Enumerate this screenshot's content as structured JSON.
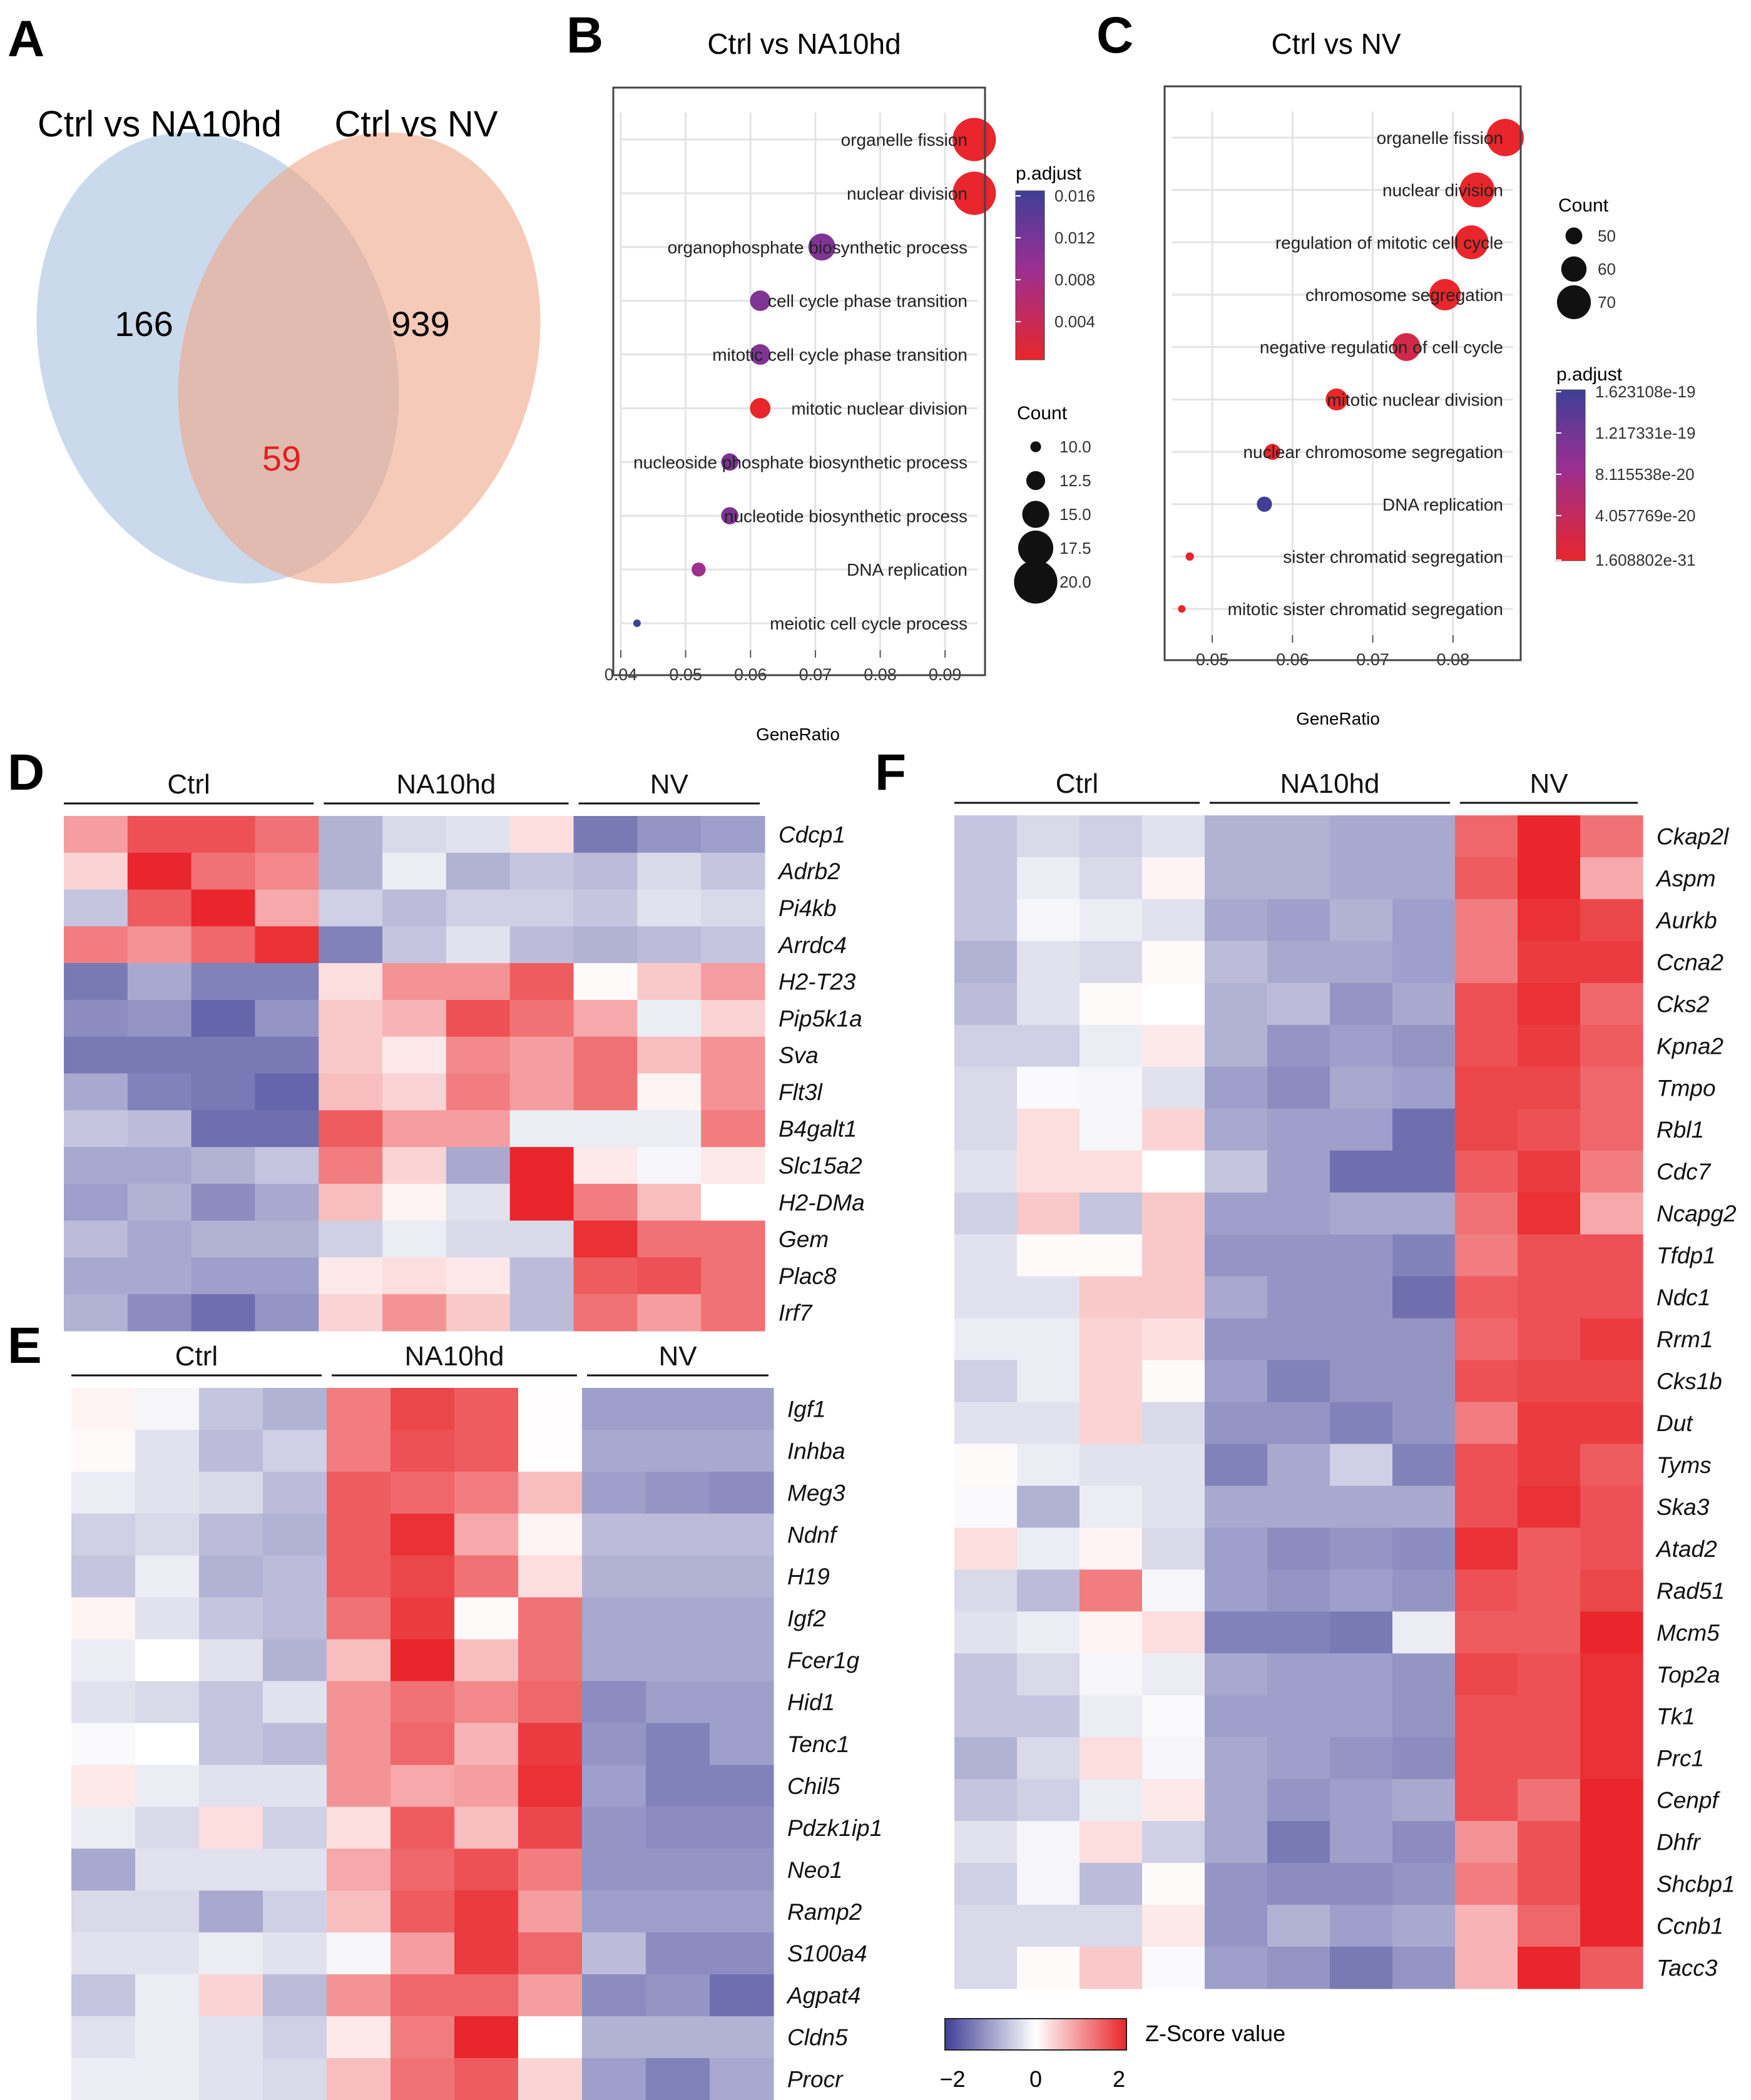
{
  "panel_letters": [
    "A",
    "B",
    "C",
    "D",
    "E",
    "F"
  ],
  "chart_data": [
    {
      "panel": "A",
      "type": "venn",
      "sets": [
        {
          "name": "Ctrl vs NA10hd",
          "only": 166,
          "color": "#b8cde6"
        },
        {
          "name": "Ctrl vs NV",
          "only": 939,
          "color": "#f0a688"
        }
      ],
      "intersection": 59,
      "intersection_color": "#e02020"
    },
    {
      "panel": "B",
      "type": "scatter",
      "title": "Ctrl vs NA10hd",
      "xlabel": "GeneRatio",
      "xlim": [
        0.04,
        0.095
      ],
      "xticks": [
        0.04,
        0.05,
        0.06,
        0.07,
        0.08,
        0.09
      ],
      "xtick_labels": [
        "0.04",
        "0.05",
        "0.06",
        "0.07",
        "0.08",
        "0.09"
      ],
      "terms": [
        {
          "term": "organelle fission",
          "ratio": 0.0945,
          "count": 20,
          "padj": 0.001
        },
        {
          "term": "nuclear division",
          "ratio": 0.0945,
          "count": 20,
          "padj": 0.001
        },
        {
          "term": "organophosphate biosynthetic process",
          "ratio": 0.071,
          "count": 15,
          "padj": 0.0115
        },
        {
          "term": "cell cycle phase transition",
          "ratio": 0.0615,
          "count": 13,
          "padj": 0.0115
        },
        {
          "term": "mitotic cell cycle phase transition",
          "ratio": 0.0615,
          "count": 13,
          "padj": 0.0115
        },
        {
          "term": "mitotic nuclear division",
          "ratio": 0.0615,
          "count": 13,
          "padj": 0.001
        },
        {
          "term": "nucleoside phosphate biosynthetic process",
          "ratio": 0.0568,
          "count": 12,
          "padj": 0.0118
        },
        {
          "term": "nucleotide biosynthetic process",
          "ratio": 0.0568,
          "count": 12,
          "padj": 0.0118
        },
        {
          "term": "DNA replication",
          "ratio": 0.052,
          "count": 11,
          "padj": 0.009
        },
        {
          "term": "meiotic cell cycle process",
          "ratio": 0.0425,
          "count": 9,
          "padj": 0.0165
        }
      ],
      "color_legend": {
        "title": "p.adjust",
        "ticks": [
          "0.016",
          "0.012",
          "0.008",
          "0.004"
        ],
        "min": 0.001,
        "max": 0.0165
      },
      "size_legend": {
        "title": "Count",
        "values": [
          10,
          12.5,
          15,
          17.5,
          20
        ],
        "labels": [
          "10.0",
          "12.5",
          "15.0",
          "17.5",
          "20.0"
        ]
      }
    },
    {
      "panel": "C",
      "type": "scatter",
      "title": "Ctrl vs NV",
      "xlabel": "GeneRatio",
      "xlim": [
        0.045,
        0.0875
      ],
      "xticks": [
        0.05,
        0.06,
        0.07,
        0.08
      ],
      "xtick_labels": [
        "0.05",
        "0.06",
        "0.07",
        "0.08"
      ],
      "terms": [
        {
          "term": "organelle fission",
          "ratio": 0.0865,
          "count": 74,
          "padj": 1.6e-31
        },
        {
          "term": "nuclear division",
          "ratio": 0.083,
          "count": 71,
          "padj": 1e-30
        },
        {
          "term": "regulation of mitotic cell cycle",
          "ratio": 0.0823,
          "count": 70,
          "padj": 1e-25
        },
        {
          "term": "chromosome segregation",
          "ratio": 0.079,
          "count": 67,
          "padj": 1e-24
        },
        {
          "term": "negative regulation of cell cycle",
          "ratio": 0.0742,
          "count": 63,
          "padj": 2.5e-20
        },
        {
          "term": "mitotic nuclear division",
          "ratio": 0.0655,
          "count": 56,
          "padj": 1e-23
        },
        {
          "term": "nuclear chromosome segregation",
          "ratio": 0.0575,
          "count": 49,
          "padj": 1e-22
        },
        {
          "term": "DNA replication",
          "ratio": 0.0565,
          "count": 48,
          "padj": 1.6e-19
        },
        {
          "term": "sister chromatid segregation",
          "ratio": 0.0472,
          "count": 40,
          "padj": 1e-22
        },
        {
          "term": "mitotic sister chromatid segregation",
          "ratio": 0.0462,
          "count": 39,
          "padj": 1e-22
        }
      ],
      "color_legend": {
        "title": "p.adjust",
        "ticks": [
          "1.623108e-19",
          "1.217331e-19",
          "8.115538e-20",
          "4.057769e-20",
          "1.608802e-31"
        ],
        "min": 1.608802e-31,
        "max": 1.623108e-19
      },
      "size_legend": {
        "title": "Count",
        "values": [
          50,
          60,
          70
        ],
        "labels": [
          "50",
          "60",
          "70"
        ]
      }
    },
    {
      "panel": "D",
      "type": "heatmap",
      "groups": [
        {
          "name": "Ctrl",
          "n": 4
        },
        {
          "name": "NA10hd",
          "n": 4
        },
        {
          "name": "NV",
          "n": 3
        }
      ],
      "genes": [
        "Cdcp1",
        "Adrb2",
        "Pi4kb",
        "Arrdc4",
        "H2-T23",
        "Pip5k1a",
        "Sva",
        "Flt3l",
        "B4galt1",
        "Slc15a2",
        "H2-DMa",
        "Gem",
        "Plac8",
        "Irf7"
      ],
      "values": [
        [
          0.9,
          1.6,
          1.6,
          1.3,
          -0.8,
          -0.4,
          -0.3,
          0.3,
          -1.4,
          -1.1,
          -1.0
        ],
        [
          0.4,
          2.0,
          1.3,
          1.1,
          -0.8,
          -0.2,
          -0.8,
          -0.6,
          -0.7,
          -0.4,
          -0.6
        ],
        [
          -0.6,
          1.5,
          2.0,
          0.8,
          -0.5,
          -0.7,
          -0.5,
          -0.5,
          -0.6,
          -0.3,
          -0.4
        ],
        [
          1.2,
          1.0,
          1.4,
          1.9,
          -1.3,
          -0.6,
          -0.3,
          -0.7,
          -0.8,
          -0.7,
          -0.6
        ],
        [
          -1.4,
          -0.9,
          -1.3,
          -1.3,
          0.3,
          1.0,
          1.0,
          1.5,
          0.05,
          0.5,
          0.9
        ],
        [
          -1.2,
          -1.1,
          -1.6,
          -1.1,
          0.5,
          0.7,
          1.6,
          1.3,
          0.8,
          -0.2,
          0.4
        ],
        [
          -1.4,
          -1.4,
          -1.4,
          -1.4,
          0.5,
          0.2,
          1.1,
          0.9,
          1.3,
          0.6,
          1.0
        ],
        [
          -0.9,
          -1.3,
          -1.4,
          -1.6,
          0.6,
          0.4,
          1.2,
          0.9,
          1.3,
          0.1,
          1.0
        ],
        [
          -0.6,
          -0.7,
          -1.5,
          -1.5,
          1.5,
          0.9,
          0.9,
          -0.2,
          -0.2,
          -0.2,
          1.2
        ],
        [
          -0.9,
          -0.9,
          -0.8,
          -0.6,
          1.2,
          0.4,
          -0.9,
          2.3,
          0.2,
          -0.1,
          0.2
        ],
        [
          -1.0,
          -0.8,
          -1.2,
          -0.9,
          0.6,
          0.1,
          -0.3,
          2.0,
          1.2,
          0.6,
          0.0
        ],
        [
          -0.7,
          -0.9,
          -0.8,
          -0.8,
          -0.5,
          -0.2,
          -0.4,
          -0.4,
          1.9,
          1.3,
          1.3
        ],
        [
          -0.9,
          -0.9,
          -1.0,
          -1.0,
          0.2,
          0.3,
          0.2,
          -0.7,
          1.5,
          1.6,
          1.3
        ],
        [
          -0.8,
          -1.2,
          -1.5,
          -1.1,
          0.4,
          1.0,
          0.5,
          -0.7,
          1.3,
          0.9,
          1.3
        ]
      ]
    },
    {
      "panel": "E",
      "type": "heatmap",
      "groups": [
        {
          "name": "Ctrl",
          "n": 4
        },
        {
          "name": "NA10hd",
          "n": 4
        },
        {
          "name": "NV",
          "n": 3
        }
      ],
      "genes": [
        "Igf1",
        "Inhba",
        "Meg3",
        "Ndnf",
        "H19",
        "Igf2",
        "Fcer1g",
        "Hid1",
        "Tenc1",
        "Chil5",
        "Pdzk1ip1",
        "Neo1",
        "Ramp2",
        "S100a4",
        "Agpat4",
        "Cldn5",
        "Procr"
      ],
      "values": [
        [
          0.1,
          -0.1,
          -0.6,
          -0.8,
          1.2,
          1.7,
          1.5,
          0.02,
          -1.0,
          -1.0,
          -1.0
        ],
        [
          0.05,
          -0.3,
          -0.7,
          -0.5,
          1.2,
          1.6,
          1.5,
          0.02,
          -0.9,
          -0.9,
          -0.9
        ],
        [
          -0.2,
          -0.3,
          -0.4,
          -0.7,
          1.5,
          1.4,
          1.2,
          0.6,
          -1.0,
          -1.1,
          -1.2
        ],
        [
          -0.5,
          -0.4,
          -0.7,
          -0.8,
          1.5,
          1.9,
          0.8,
          0.1,
          -0.7,
          -0.7,
          -0.7
        ],
        [
          -0.6,
          -0.2,
          -0.8,
          -0.7,
          1.5,
          1.7,
          1.3,
          0.3,
          -0.8,
          -0.8,
          -0.8
        ],
        [
          0.1,
          -0.3,
          -0.6,
          -0.7,
          1.3,
          1.8,
          0.05,
          1.3,
          -0.9,
          -0.9,
          -0.9
        ],
        [
          -0.2,
          0.0,
          -0.3,
          -0.8,
          0.6,
          2.0,
          0.6,
          1.3,
          -0.9,
          -0.9,
          -0.9
        ],
        [
          -0.3,
          -0.4,
          -0.6,
          -0.3,
          1.0,
          1.3,
          1.1,
          1.4,
          -1.2,
          -1.0,
          -1.0
        ],
        [
          -0.05,
          0.0,
          -0.6,
          -0.7,
          1.0,
          1.4,
          0.7,
          1.8,
          -1.1,
          -1.3,
          -1.0
        ],
        [
          0.2,
          -0.2,
          -0.3,
          -0.3,
          1.0,
          0.8,
          0.9,
          1.9,
          -1.0,
          -1.3,
          -1.3
        ],
        [
          -0.2,
          -0.4,
          0.3,
          -0.5,
          0.3,
          1.5,
          0.6,
          1.7,
          -1.1,
          -1.2,
          -1.2
        ],
        [
          -0.9,
          -0.3,
          -0.3,
          -0.3,
          0.8,
          1.4,
          1.6,
          1.2,
          -1.1,
          -1.1,
          -1.1
        ],
        [
          -0.4,
          -0.4,
          -0.9,
          -0.5,
          0.6,
          1.5,
          1.8,
          0.9,
          -1.0,
          -1.0,
          -1.0
        ],
        [
          -0.3,
          -0.3,
          -0.2,
          -0.3,
          -0.1,
          0.9,
          1.8,
          1.4,
          -0.7,
          -1.2,
          -1.2
        ],
        [
          -0.6,
          -0.2,
          0.4,
          -0.7,
          1.0,
          1.4,
          1.4,
          0.9,
          -1.2,
          -1.1,
          -1.5
        ],
        [
          -0.3,
          -0.2,
          -0.3,
          -0.5,
          0.2,
          1.2,
          2.1,
          0.0,
          -0.8,
          -0.8,
          -0.8
        ],
        [
          -0.2,
          -0.2,
          -0.3,
          -0.4,
          0.6,
          1.3,
          1.5,
          0.4,
          -1.0,
          -1.3,
          -0.9
        ]
      ]
    },
    {
      "panel": "F",
      "type": "heatmap",
      "groups": [
        {
          "name": "Ctrl",
          "n": 4
        },
        {
          "name": "NA10hd",
          "n": 4
        },
        {
          "name": "NV",
          "n": 3
        }
      ],
      "genes": [
        "Ckap2l",
        "Aspm",
        "Aurkb",
        "Ccna2",
        "Cks2",
        "Kpna2",
        "Tmpo",
        "Rbl1",
        "Cdc7",
        "Ncapg2",
        "Tfdp1",
        "Ndc1",
        "Rrm1",
        "Cks1b",
        "Dut",
        "Tyms",
        "Ska3",
        "Atad2",
        "Rad51",
        "Mcm5",
        "Top2a",
        "Tk1",
        "Prc1",
        "Cenpf",
        "Dhfr",
        "Shcbp1",
        "Ccnb1",
        "Tacc3"
      ],
      "values": [
        [
          -0.6,
          -0.4,
          -0.5,
          -0.3,
          -0.8,
          -0.8,
          -0.9,
          -0.9,
          1.4,
          2.0,
          1.3
        ],
        [
          -0.6,
          -0.2,
          -0.4,
          0.1,
          -0.8,
          -0.8,
          -0.9,
          -0.9,
          1.5,
          2.0,
          0.8
        ],
        [
          -0.6,
          -0.1,
          -0.2,
          -0.3,
          -0.9,
          -1.0,
          -0.8,
          -1.0,
          1.2,
          1.9,
          1.7
        ],
        [
          -0.8,
          -0.3,
          -0.4,
          0.05,
          -0.7,
          -0.9,
          -0.9,
          -1.0,
          1.2,
          1.8,
          1.8
        ],
        [
          -0.7,
          -0.3,
          0.05,
          0.0,
          -0.8,
          -0.7,
          -1.1,
          -0.9,
          1.6,
          1.9,
          1.4
        ],
        [
          -0.5,
          -0.5,
          -0.2,
          0.2,
          -0.8,
          -1.1,
          -1.0,
          -1.1,
          1.6,
          1.8,
          1.5
        ],
        [
          -0.4,
          -0.05,
          -0.1,
          -0.3,
          -1.0,
          -1.2,
          -0.9,
          -1.0,
          1.7,
          1.7,
          1.4
        ],
        [
          -0.4,
          0.3,
          -0.1,
          0.4,
          -0.9,
          -1.0,
          -1.0,
          -1.5,
          1.7,
          1.6,
          1.4
        ],
        [
          -0.3,
          0.3,
          0.3,
          0.0,
          -0.6,
          -1.0,
          -1.5,
          -1.5,
          1.5,
          1.8,
          1.2
        ],
        [
          -0.5,
          0.5,
          -0.6,
          0.5,
          -1.0,
          -1.0,
          -0.9,
          -0.9,
          1.3,
          1.9,
          0.8
        ],
        [
          -0.3,
          0.05,
          0.05,
          0.5,
          -1.1,
          -1.1,
          -1.1,
          -1.3,
          1.2,
          1.6,
          1.6
        ],
        [
          -0.3,
          -0.3,
          0.5,
          0.5,
          -0.9,
          -1.1,
          -1.1,
          -1.5,
          1.5,
          1.6,
          1.6
        ],
        [
          -0.2,
          -0.2,
          0.4,
          0.3,
          -1.1,
          -1.1,
          -1.1,
          -1.1,
          1.4,
          1.6,
          1.8
        ],
        [
          -0.5,
          -0.2,
          0.4,
          0.05,
          -1.0,
          -1.3,
          -1.1,
          -1.1,
          1.6,
          1.7,
          1.7
        ],
        [
          -0.3,
          -0.3,
          0.4,
          -0.4,
          -1.1,
          -1.1,
          -1.3,
          -1.1,
          1.2,
          1.8,
          1.8
        ],
        [
          0.05,
          -0.2,
          -0.3,
          -0.3,
          -1.3,
          -0.9,
          -0.5,
          -1.3,
          1.6,
          1.8,
          1.5
        ],
        [
          -0.05,
          -0.8,
          -0.2,
          -0.3,
          -0.9,
          -0.9,
          -0.9,
          -0.9,
          1.6,
          1.9,
          1.6
        ],
        [
          0.3,
          -0.2,
          0.1,
          -0.4,
          -1.0,
          -1.2,
          -1.1,
          -1.2,
          1.9,
          1.5,
          1.6
        ],
        [
          -0.4,
          -0.7,
          1.2,
          -0.1,
          -1.0,
          -1.1,
          -1.0,
          -1.1,
          1.6,
          1.5,
          1.7
        ],
        [
          -0.3,
          -0.2,
          0.1,
          0.3,
          -1.3,
          -1.3,
          -1.4,
          -0.2,
          1.5,
          1.5,
          2.0
        ],
        [
          -0.6,
          -0.4,
          -0.1,
          -0.2,
          -0.9,
          -1.0,
          -1.0,
          -1.1,
          1.7,
          1.6,
          1.9
        ],
        [
          -0.6,
          -0.6,
          -0.2,
          -0.05,
          -1.0,
          -1.0,
          -1.0,
          -1.1,
          1.6,
          1.6,
          1.9
        ],
        [
          -0.8,
          -0.4,
          0.3,
          -0.1,
          -0.9,
          -1.0,
          -1.1,
          -1.2,
          1.6,
          1.6,
          1.9
        ],
        [
          -0.6,
          -0.5,
          -0.2,
          0.2,
          -0.9,
          -1.1,
          -1.0,
          -0.9,
          1.6,
          1.3,
          2.0
        ],
        [
          -0.3,
          -0.1,
          0.3,
          -0.5,
          -0.9,
          -1.4,
          -1.0,
          -1.2,
          1.0,
          1.6,
          2.0
        ],
        [
          -0.5,
          -0.1,
          -0.7,
          0.05,
          -1.1,
          -1.2,
          -1.2,
          -1.1,
          1.2,
          1.6,
          2.0
        ],
        [
          -0.4,
          -0.4,
          -0.4,
          0.2,
          -1.1,
          -0.8,
          -1.0,
          -0.9,
          0.7,
          1.4,
          2.0
        ],
        [
          -0.4,
          0.05,
          0.5,
          -0.05,
          -1.0,
          -1.1,
          -1.4,
          -1.1,
          0.7,
          2.0,
          1.5
        ]
      ]
    }
  ],
  "colorbar": {
    "title": "Z-Score value",
    "min": -2,
    "max": 2,
    "ticks": [
      "−2",
      "0",
      "2"
    ],
    "low_color": "#3f3f96",
    "mid_color": "#ffffff",
    "high_color": "#e8262b"
  }
}
